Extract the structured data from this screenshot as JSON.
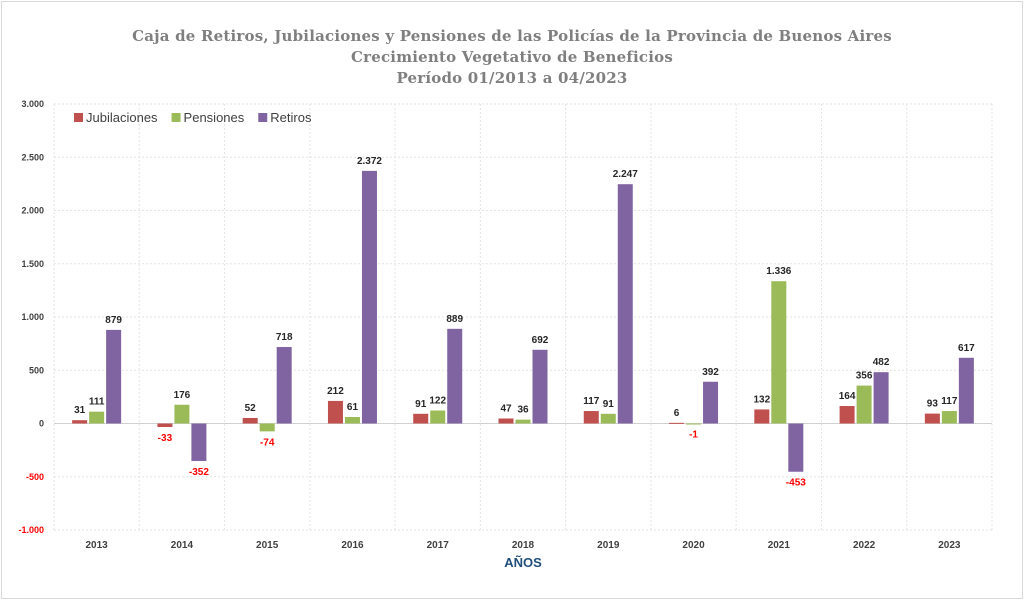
{
  "chart_data": {
    "type": "bar",
    "title": "Caja de Retiros, Jubilaciones y Pensiones de las Policías de la Provincia de Buenos Aires",
    "subtitle": "Crecimiento Vegetativo  de Beneficios",
    "period": "Período  01/2013  a  04/2023",
    "xlabel": "AÑOS",
    "ylabel": "",
    "categories": [
      "2013",
      "2014",
      "2015",
      "2016",
      "2017",
      "2018",
      "2019",
      "2020",
      "2021",
      "2022",
      "2023"
    ],
    "series": [
      {
        "name": "Jubilaciones",
        "color": "#c0504d",
        "values": [
          31,
          -33,
          52,
          212,
          91,
          47,
          117,
          6,
          132,
          164,
          93
        ]
      },
      {
        "name": "Pensiones",
        "color": "#9bbb59",
        "values": [
          111,
          176,
          -74,
          61,
          122,
          36,
          91,
          -1,
          1336,
          356,
          117
        ]
      },
      {
        "name": "Retiros",
        "color": "#8064a2",
        "values": [
          879,
          -352,
          718,
          2372,
          889,
          692,
          2247,
          392,
          -453,
          482,
          617
        ]
      }
    ],
    "ylim": [
      -1000,
      3000
    ],
    "yticks": [
      3000,
      2500,
      2000,
      1500,
      1000,
      500,
      0,
      -500,
      -1000
    ],
    "ytick_labels": [
      "3.000",
      "2.500",
      "2.000",
      "1.500",
      "1.000",
      "500",
      "0",
      "-500",
      "-1.000"
    ],
    "data_labels": [
      [
        "31",
        "-33",
        "52",
        "212",
        "91",
        "47",
        "117",
        "6",
        "132",
        "164",
        "93"
      ],
      [
        "111",
        "176",
        "-74",
        "61",
        "122",
        "36",
        "91",
        "-1",
        "1.336",
        "356",
        "117"
      ],
      [
        "879",
        "-352",
        "718",
        "2.372",
        "889",
        "692",
        "2.247",
        "392",
        "-453",
        "482",
        "617"
      ]
    ],
    "negative_label_color": "#ff0000",
    "grid": true,
    "legend_position": "top-left"
  }
}
